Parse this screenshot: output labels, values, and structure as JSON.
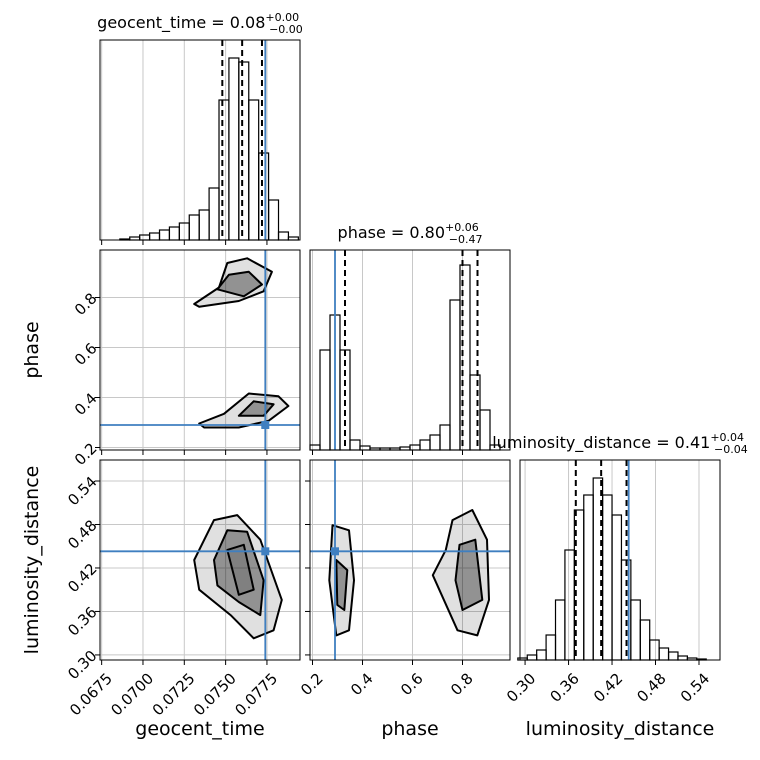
{
  "chart_data": {
    "type": "corner",
    "truth_color": "#3f7fc0",
    "grid": true,
    "hist_ylim": [
      0,
      200
    ],
    "params": [
      {
        "label": "geocent_time",
        "title": {
          "text": "geocent_time = 0.08",
          "plus": "+0.00",
          "minus": "−0.00"
        },
        "lim": [
          0.0674,
          0.0795
        ],
        "ticks": [
          0.0675,
          {
            "value": 0.07,
            "label": "0.0700"
          },
          0.0725,
          {
            "value": 0.075,
            "label": "0.0750"
          },
          0.0775
        ],
        "truth": 0.0774,
        "quantiles": [
          0.0748,
          0.076,
          0.0772
        ],
        "bins": [
          0.0674,
          0.068,
          0.0686,
          0.0692,
          0.0698,
          0.0704,
          0.071,
          0.0716,
          0.0722,
          0.0728,
          0.0734,
          0.074,
          0.0746,
          0.0752,
          0.0758,
          0.0764,
          0.077,
          0.0776,
          0.0782,
          0.0788,
          0.0794
        ],
        "counts": [
          0,
          0,
          1,
          3,
          5,
          7,
          10,
          13,
          17,
          25,
          30,
          52,
          140,
          182,
          178,
          140,
          87,
          40,
          8,
          3
        ]
      },
      {
        "label": "phase",
        "title": {
          "text": "phase = 0.80",
          "plus": "+0.06",
          "minus": "−0.47"
        },
        "lim": [
          0.19,
          0.99
        ],
        "ticks": [
          0.2,
          0.4,
          0.6,
          0.8
        ],
        "truth": 0.29,
        "quantiles": [
          0.33,
          0.8,
          0.86
        ],
        "bins": [
          0.19,
          0.23,
          0.27,
          0.31,
          0.35,
          0.39,
          0.43,
          0.47,
          0.51,
          0.55,
          0.59,
          0.63,
          0.67,
          0.71,
          0.75,
          0.79,
          0.83,
          0.87,
          0.91,
          0.95,
          0.99
        ],
        "counts": [
          5,
          100,
          135,
          100,
          10,
          4,
          2,
          2,
          2,
          3,
          5,
          10,
          15,
          25,
          150,
          185,
          75,
          40,
          5,
          0
        ]
      },
      {
        "label": "luminosity_distance",
        "title": {
          "text": "luminosity_distance = 0.41",
          "plus": "+0.04",
          "minus": "−0.04"
        },
        "lim": [
          0.293,
          0.569
        ],
        "ticks": [
          {
            "value": 0.3,
            "label": "0.30"
          },
          0.36,
          0.42,
          0.48,
          0.54
        ],
        "truth": 0.443,
        "quantiles": [
          0.37,
          0.405,
          0.44
        ],
        "bins": [
          0.29,
          0.303,
          0.316,
          0.329,
          0.342,
          0.355,
          0.368,
          0.381,
          0.394,
          0.407,
          0.42,
          0.433,
          0.446,
          0.459,
          0.472,
          0.485,
          0.498,
          0.511,
          0.524,
          0.537,
          0.55
        ],
        "counts": [
          2,
          5,
          10,
          25,
          60,
          110,
          150,
          165,
          182,
          165,
          145,
          100,
          60,
          40,
          20,
          12,
          8,
          4,
          2,
          1
        ]
      }
    ],
    "panels": [
      {
        "contours": [
          {
            "x": [
              0.0731,
              0.0746,
              0.0751,
              0.0763,
              0.0778,
              0.0773,
              0.0758,
              0.0734
            ],
            "y": [
              0.774,
              0.84,
              0.938,
              0.957,
              0.903,
              0.825,
              0.786,
              0.763
            ]
          },
          {
            "x": [
              0.0745,
              0.0752,
              0.0764,
              0.0772,
              0.0761
            ],
            "y": [
              0.833,
              0.891,
              0.903,
              0.852,
              0.805
            ]
          },
          {
            "x": [
              0.0734,
              0.0749,
              0.0764,
              0.0782,
              0.0788,
              0.0776,
              0.0758,
              0.0737
            ],
            "y": [
              0.296,
              0.335,
              0.416,
              0.405,
              0.366,
              0.307,
              0.28,
              0.28
            ]
          },
          {
            "x": [
              0.0758,
              0.0767,
              0.0779,
              0.0773
            ],
            "y": [
              0.327,
              0.385,
              0.373,
              0.327
            ]
          }
        ]
      },
      {
        "contours": [
          {
            "x": [
              0.0731,
              0.0743,
              0.0757,
              0.0771,
              0.0784,
              0.0779,
              0.0767,
              0.0753,
              0.0734
            ],
            "y": [
              0.431,
              0.486,
              0.493,
              0.459,
              0.376,
              0.334,
              0.323,
              0.355,
              0.39
            ]
          },
          {
            "x": [
              0.0743,
              0.0751,
              0.0763,
              0.0773,
              0.0771,
              0.0758,
              0.0745
            ],
            "y": [
              0.431,
              0.472,
              0.47,
              0.403,
              0.355,
              0.373,
              0.396
            ]
          },
          {
            "x": [
              0.0751,
              0.0761,
              0.0767,
              0.0758
            ],
            "y": [
              0.445,
              0.452,
              0.39,
              0.383
            ]
          }
        ]
      },
      {
        "contours": [
          {
            "x": [
              0.28,
              0.346,
              0.366,
              0.346,
              0.295,
              0.267
            ],
            "y": [
              0.479,
              0.472,
              0.403,
              0.334,
              0.327,
              0.403
            ]
          },
          {
            "x": [
              0.295,
              0.339,
              0.327,
              0.299
            ],
            "y": [
              0.431,
              0.417,
              0.362,
              0.369
            ]
          },
          {
            "x": [
              0.76,
              0.839,
              0.898,
              0.906,
              0.859,
              0.78,
              0.681,
              0.733
            ],
            "y": [
              0.486,
              0.5,
              0.459,
              0.376,
              0.327,
              0.334,
              0.41,
              0.445
            ]
          },
          {
            "x": [
              0.788,
              0.851,
              0.879,
              0.8,
              0.772
            ],
            "y": [
              0.452,
              0.459,
              0.376,
              0.362,
              0.403
            ]
          }
        ]
      }
    ]
  }
}
